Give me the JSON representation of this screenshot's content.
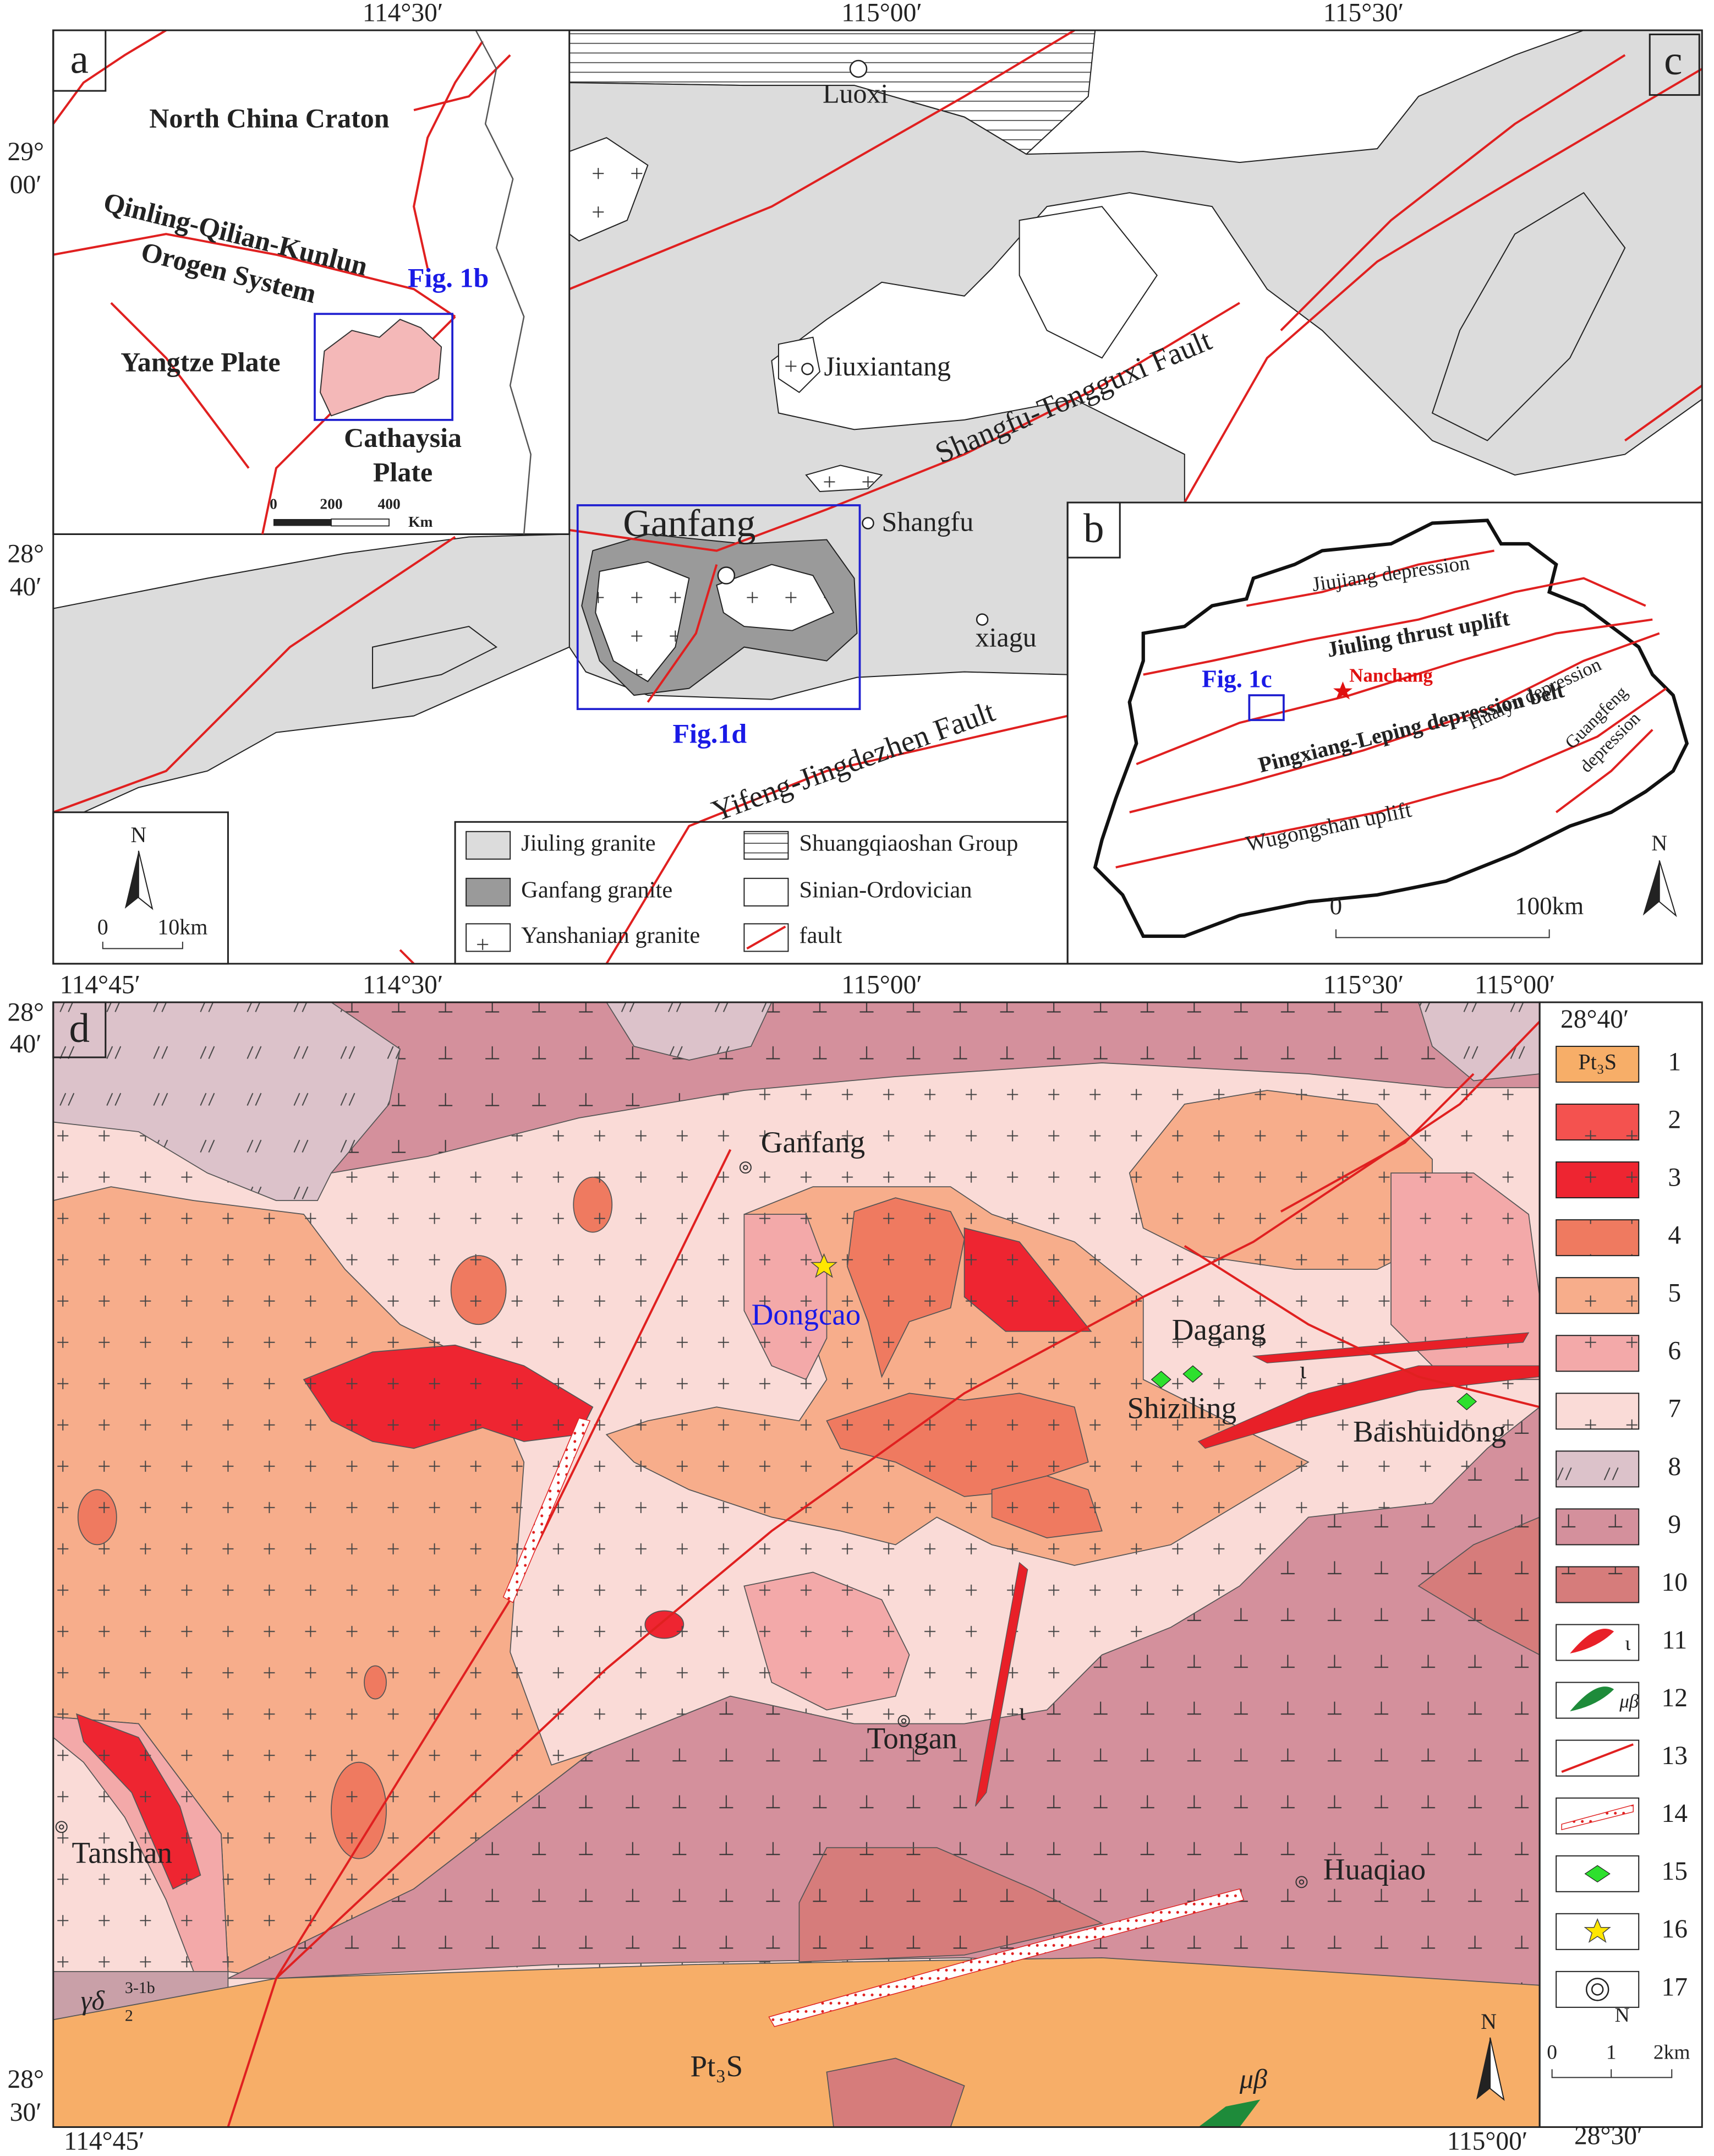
{
  "coords_top": {
    "lon": [
      "114°30′",
      "115°00′",
      "115°30′"
    ],
    "lat_29": [
      "29°",
      "00′"
    ],
    "lat_2840": [
      "28°",
      "40′"
    ]
  },
  "panel_a": {
    "letter": "a",
    "craton": "North China Craton",
    "orogen_1": "Qinling-Qilian-Kunlun",
    "orogen_2": "Orogen System",
    "fig": "Fig. 1b",
    "yangtze": "Yangtze Plate",
    "cathaysia_1": "Cathaysia",
    "cathaysia_2": "Plate",
    "scale": [
      "0",
      "200",
      "400",
      "Km"
    ]
  },
  "panel_c": {
    "letter": "c",
    "places": [
      "Luoxi",
      "Jiuxiantang",
      "Ganfang",
      "Shangfu",
      "xiagu"
    ],
    "fault_1": "Shangfu-Tongguxi Fault",
    "fault_2": "Yifeng-Jingdezhen Fault",
    "fig": "Fig.1d",
    "north": "N",
    "scale": [
      "0",
      "10km"
    ],
    "legend": [
      "Jiuling granite",
      "Ganfang granite",
      "Yanshanian granite",
      "Shuangqiaoshan Group",
      "Sinian-Ordovician",
      "fault"
    ]
  },
  "panel_b": {
    "letter": "b",
    "units": [
      "Jiujiang depression",
      "Jiuling thrust uplift",
      "Pingxiang-Leping depression belt",
      "Huaiyu depression",
      "Guangfeng",
      "depression",
      "Wugongshan uplift"
    ],
    "city": "Nanchang",
    "fig": "Fig. 1c",
    "north": "N",
    "scale": [
      "0",
      "100km"
    ]
  },
  "panel_d": {
    "letter": "d",
    "top_lon": [
      "114°45′",
      "114°30′",
      "115°00′",
      "115°30′",
      "115°00′"
    ],
    "left_top": [
      "28°",
      "40′"
    ],
    "right_top": "28°40′",
    "left_bottom": [
      "28°",
      "30′"
    ],
    "bottom_lon": [
      "114°45′",
      "115°00′"
    ],
    "right_bottom": "28°30′",
    "places": [
      "Ganfang",
      "Dongcao",
      "Dagang",
      "Shiziling",
      "Baishuidong",
      "Tongan",
      "Tanshan",
      "Huaqiao"
    ],
    "unit_pt": "Pt₃S",
    "unit_mb": "μβ",
    "dike": "ι",
    "gd": {
      "base": "γδ",
      "sub": "2",
      "sup": "3-1b"
    },
    "legend": [
      "1",
      "2",
      "3",
      "4",
      "5",
      "6",
      "7",
      "8",
      "9",
      "10",
      "11",
      "12",
      "13",
      "14",
      "15",
      "16",
      "17"
    ],
    "north": "N",
    "scale": [
      "0",
      "1",
      "2km"
    ]
  }
}
